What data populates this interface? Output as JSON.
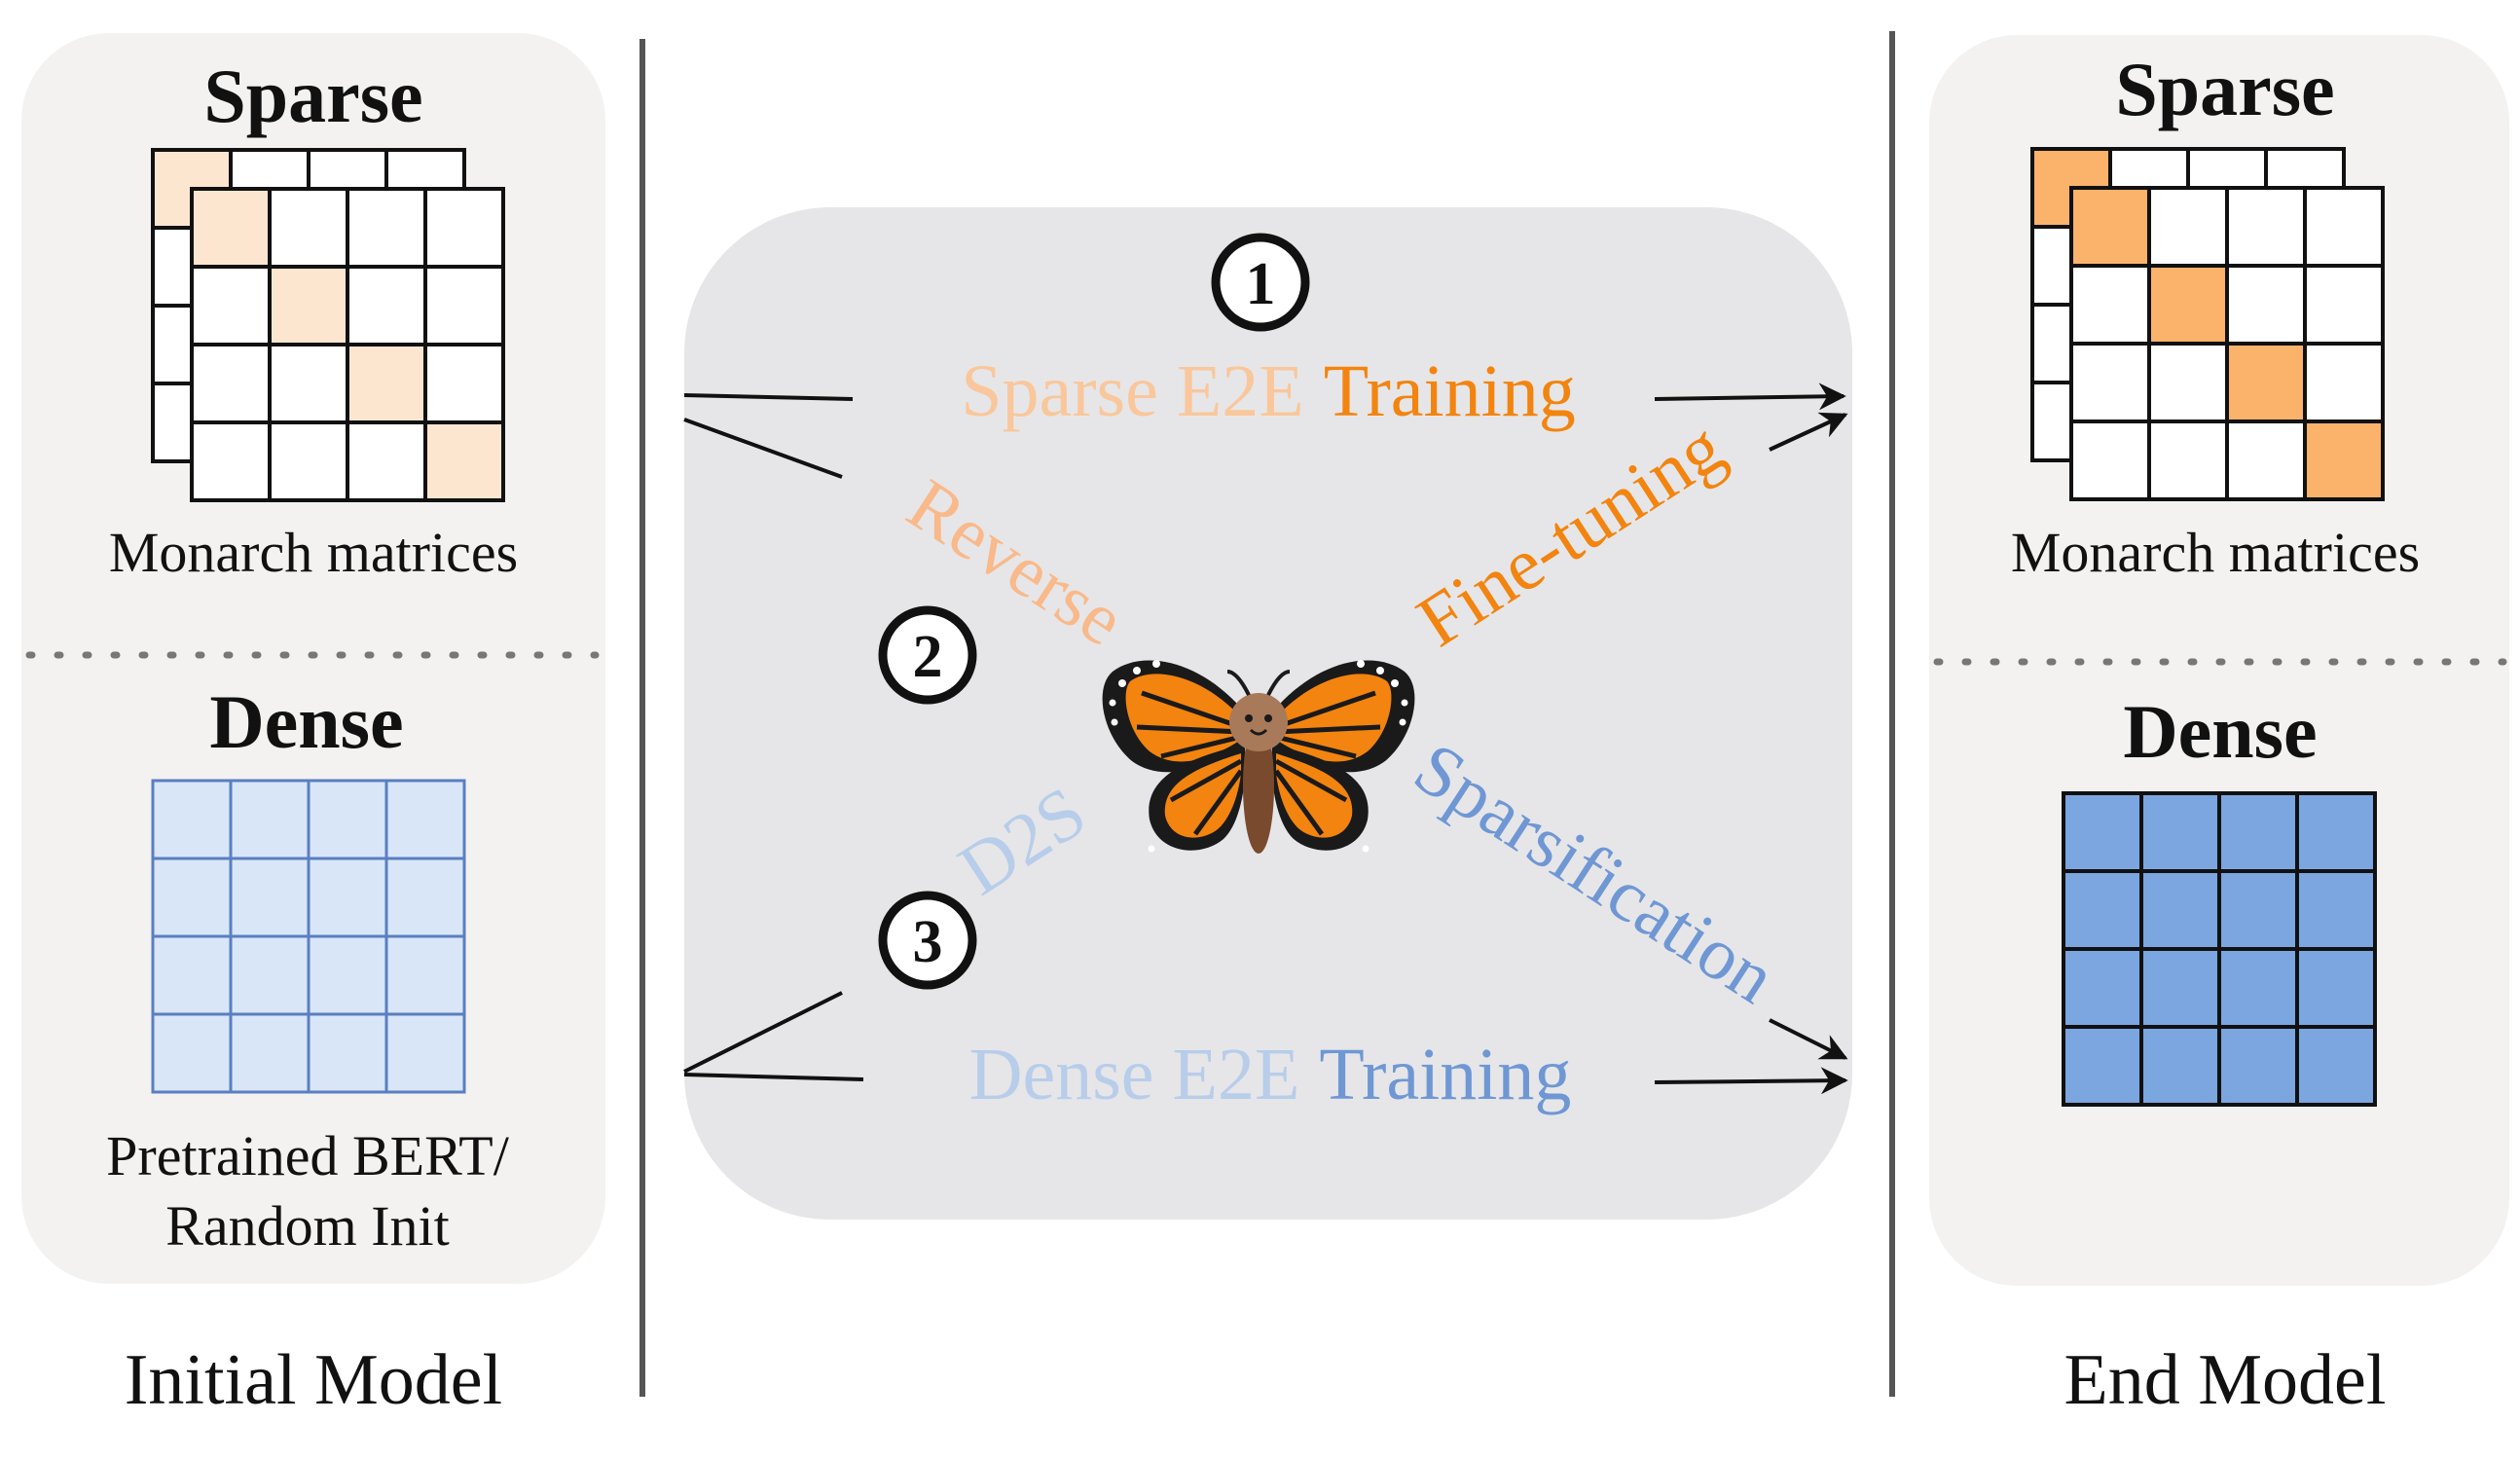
{
  "initial": {
    "sparse_label": "Sparse",
    "sparse_caption": "Monarch matrices",
    "dense_label": "Dense",
    "dense_caption_line1": "Pretrained BERT/",
    "dense_caption_line2": "Random Init",
    "title": "Initial Model"
  },
  "end": {
    "sparse_label": "Sparse",
    "sparse_caption": "Monarch matrices",
    "dense_label": "Dense",
    "title": "End Model"
  },
  "routes": {
    "r1_number": "1",
    "r1_part1": "Sparse E2E",
    "r1_part2": "Training",
    "r2_number": "2",
    "r2_part1": "Reverse",
    "r2_part2": "Fine-tuning",
    "r3_number": "3",
    "r3_part1": "D2S",
    "r3_part2": "Sparsification",
    "r4_part1": "Dense E2E",
    "r4_part2": "Training"
  },
  "colors": {
    "sparse_light": "#f9d7b4",
    "sparse_dark": "#f2840f",
    "sparse_fill_light": "#fde6d0",
    "sparse_fill_dark": "#fbb26b",
    "dense_light": "#b7cdea",
    "dense_dark": "#6f97d4",
    "dense_fill_light": "#d8e6f8",
    "dense_fill_dark": "#7ba6e0"
  },
  "icons": [
    "butterfly-icon"
  ]
}
